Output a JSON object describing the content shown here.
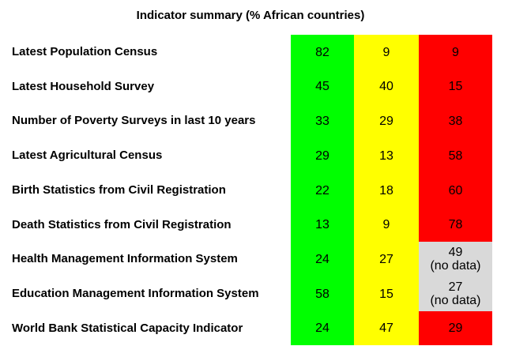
{
  "chart_data": {
    "type": "table",
    "title": "Indicator summary (% African countries)",
    "colors": {
      "green": "#00ff00",
      "yellow": "#ffff00",
      "red": "#ff0000",
      "nodata": "#d9d9d9"
    },
    "rows": [
      {
        "label": "Latest Population Census",
        "green": 82,
        "yellow": 9,
        "red": 9,
        "red_note": ""
      },
      {
        "label": "Latest Household Survey",
        "green": 45,
        "yellow": 40,
        "red": 15,
        "red_note": ""
      },
      {
        "label": "Number of Poverty Surveys in last 10 years",
        "green": 33,
        "yellow": 29,
        "red": 38,
        "red_note": ""
      },
      {
        "label": "Latest Agricultural Census",
        "green": 29,
        "yellow": 13,
        "red": 58,
        "red_note": ""
      },
      {
        "label": "Birth Statistics from Civil Registration",
        "green": 22,
        "yellow": 18,
        "red": 60,
        "red_note": ""
      },
      {
        "label": "Death Statistics from Civil Registration",
        "green": 13,
        "yellow": 9,
        "red": 78,
        "red_note": ""
      },
      {
        "label": "Health Management Information System",
        "green": 24,
        "yellow": 27,
        "red": 49,
        "red_note": "(no data)"
      },
      {
        "label": "Education Management Information System",
        "green": 58,
        "yellow": 15,
        "red": 27,
        "red_note": "(no data)"
      },
      {
        "label": "World Bank Statistical Capacity Indicator",
        "green": 24,
        "yellow": 47,
        "red": 29,
        "red_note": ""
      }
    ]
  }
}
